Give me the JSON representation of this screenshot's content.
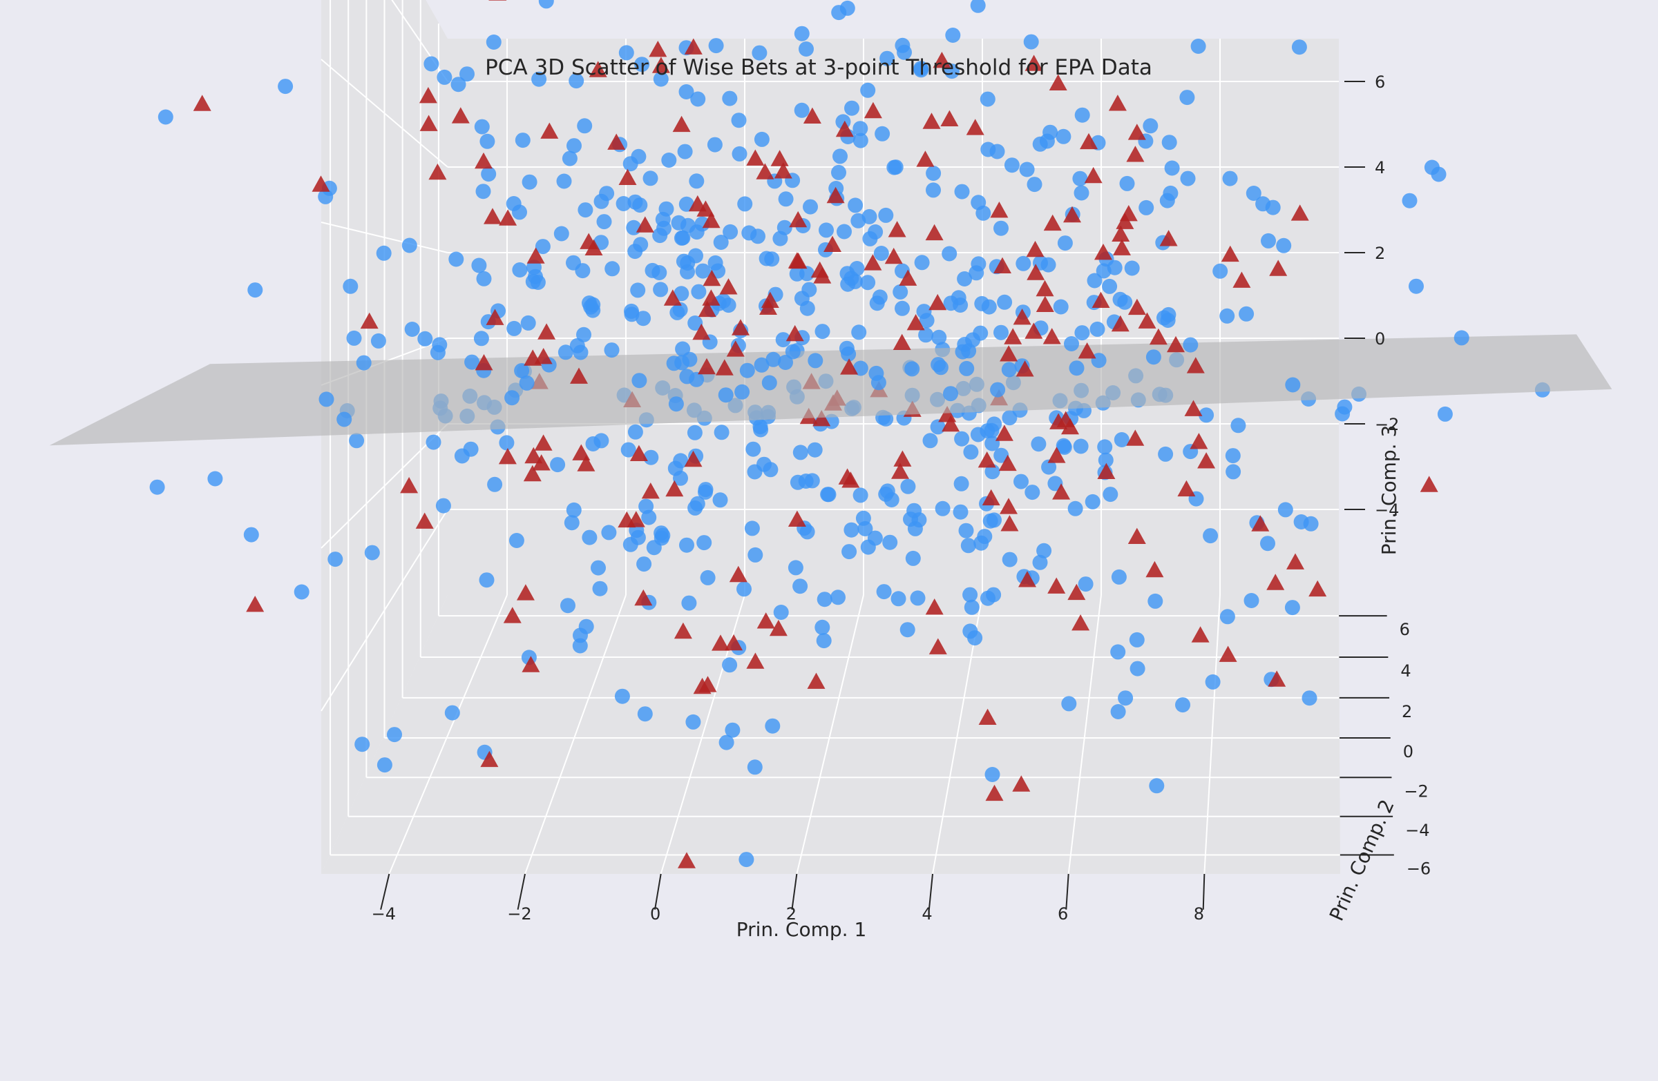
{
  "chart_data": {
    "type": "scatter",
    "projection": "3d",
    "title": "PCA 3D Scatter of Wise Bets at 3-point Threshold for EPA Data",
    "xlabel": "Prin. Comp. 1",
    "ylabel": "Prin. Comp. 2",
    "zlabel": "Prin. Comp. 3",
    "xlim": [
      -5,
      10
    ],
    "ylim": [
      -7,
      7
    ],
    "zlim": [
      -6,
      7
    ],
    "xticks": [
      "−4",
      "−2",
      "0",
      "2",
      "4",
      "6",
      "8"
    ],
    "yticks": [
      "−6",
      "−4",
      "−2",
      "0",
      "2",
      "4",
      "6"
    ],
    "zticks": [
      "−4",
      "−2",
      "0",
      "2",
      "4",
      "6"
    ],
    "grid": true,
    "decision_plane": {
      "description_free": true,
      "z_at_origin": -0.4,
      "slope_x": 0.03,
      "slope_y": 0.01,
      "color": "#b4b4b4"
    },
    "series": [
      {
        "marker": "circle",
        "color": "#3d95f5",
        "count": 620
      },
      {
        "marker": "triangle",
        "color": "#b22222",
        "count": 200
      }
    ]
  },
  "colors": {
    "background": "#eaeaf2",
    "pane": "#e3e3e6",
    "grid": "#ffffff",
    "text": "#262626"
  }
}
